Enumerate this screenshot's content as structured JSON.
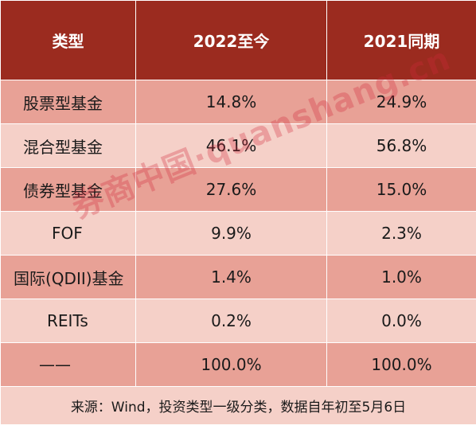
{
  "headers": [
    "类型",
    "2022至今",
    "2021同期"
  ],
  "rows": [
    {
      "type": "股票型基金",
      "y2022": "14.8%",
      "y2021": "24.9%"
    },
    {
      "type": "混合型基金",
      "y2022": "46.1%",
      "y2021": "56.8%"
    },
    {
      "type": "债券型基金",
      "y2022": "27.6%",
      "y2021": "15.0%"
    },
    {
      "type": "FOF",
      "y2022": "9.9%",
      "y2021": "2.3%"
    },
    {
      "type": "国际(QDII)基金",
      "y2022": "1.4%",
      "y2021": "1.0%"
    },
    {
      "type": "REITs",
      "y2022": "0.2%",
      "y2021": "0.0%"
    },
    {
      "type": "——",
      "y2022": "100.0%",
      "y2021": "100.0%"
    }
  ],
  "note": "来源：Wind，投资类型一级分类，数据自年初至5月6日",
  "watermark": "券商中国·quanshang.cn",
  "colors": {
    "header_bg": "#9b2b1f",
    "row_dark": "#e8a196",
    "row_light": "#f5d0c8",
    "watermark": "#d2283c"
  }
}
